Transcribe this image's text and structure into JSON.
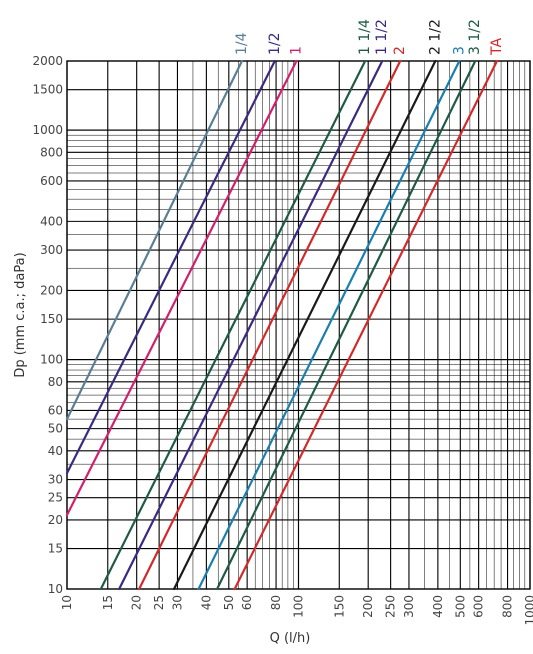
{
  "chart_data": {
    "type": "line",
    "title": "",
    "xlabel": "Q (l/h)",
    "ylabel": "Dp (mm c.a.; daPa)",
    "xscale": "log",
    "yscale": "log",
    "xlim": [
      10,
      1000
    ],
    "ylim": [
      10,
      2000
    ],
    "grid": true,
    "x_ticks": [
      10,
      15,
      20,
      25,
      30,
      40,
      50,
      60,
      80,
      100,
      150,
      200,
      250,
      300,
      400,
      500,
      600,
      800,
      1000
    ],
    "y_ticks": [
      10,
      15,
      20,
      25,
      30,
      40,
      50,
      60,
      80,
      100,
      150,
      200,
      300,
      400,
      600,
      800,
      1000,
      1500,
      2000
    ],
    "series": [
      {
        "name": "1/4",
        "color": "#5a7f95",
        "x": [
          10,
          57
        ],
        "y": [
          55,
          2000
        ]
      },
      {
        "name": "1/2",
        "color": "#3b2a80",
        "x": [
          10,
          79
        ],
        "y": [
          32,
          2000
        ]
      },
      {
        "name": "1",
        "color": "#d21f6e",
        "x": [
          10,
          98
        ],
        "y": [
          21,
          2000
        ]
      },
      {
        "name": "1 1/4",
        "color": "#1f5a47",
        "x": [
          14,
          194
        ],
        "y": [
          10,
          2000
        ]
      },
      {
        "name": "1 1/2",
        "color": "#3b2a80",
        "x": [
          16.8,
          230
        ],
        "y": [
          10,
          2000
        ]
      },
      {
        "name": "2",
        "color": "#d22a2a",
        "x": [
          20.5,
          275
        ],
        "y": [
          10,
          2000
        ]
      },
      {
        "name": "2 1/2",
        "color": "#1a1a1a",
        "x": [
          29,
          390
        ],
        "y": [
          10,
          2000
        ]
      },
      {
        "name": "3",
        "color": "#1a7fae",
        "x": [
          37,
          495
        ],
        "y": [
          10,
          2000
        ]
      },
      {
        "name": "3 1/2",
        "color": "#1f5a47",
        "x": [
          44.5,
          580
        ],
        "y": [
          10,
          2000
        ]
      },
      {
        "name": "TA",
        "color": "#d22a2a",
        "x": [
          53,
          720
        ],
        "y": [
          10,
          2000
        ]
      }
    ]
  }
}
